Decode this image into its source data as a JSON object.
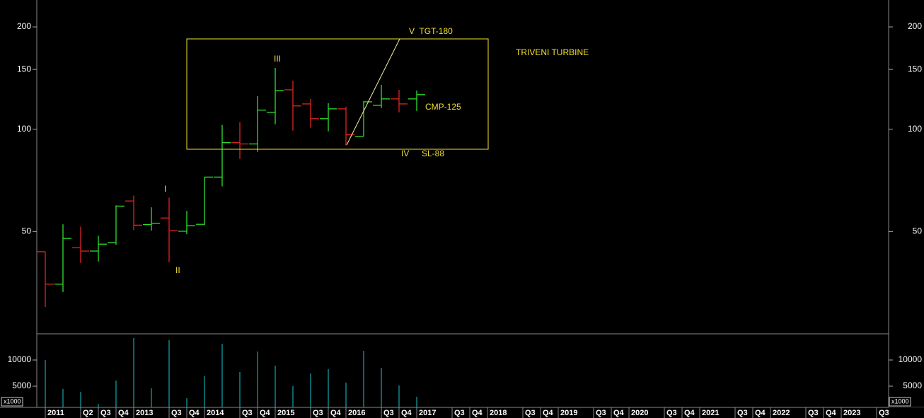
{
  "chart_data": {
    "type": "ohlc",
    "title": "TRIVENI TURBINE",
    "annotations": [
      "V  TGT-180",
      "III",
      "CMP-125",
      "IV",
      "SL-88",
      "I",
      "II"
    ],
    "categories": [
      "2011",
      null,
      "Q2",
      "Q3",
      "Q4",
      "2013",
      null,
      "Q3",
      "Q4",
      "2014",
      null,
      "Q3",
      "Q4",
      "2015",
      null,
      "Q3",
      "Q4",
      "2016",
      null,
      "Q3",
      "Q4",
      "2017",
      null,
      "Q3",
      "Q4",
      "2018",
      null,
      "Q3",
      "Q4",
      "2019",
      null,
      "Q3",
      "Q4",
      "2020",
      null,
      "Q3",
      "Q4",
      "2021",
      null,
      "Q3",
      "Q4",
      "2022",
      null,
      "Q3",
      "Q4",
      "2023",
      null,
      "Q3"
    ],
    "open": [
      43.6,
      35.0,
      44.8,
      43.8,
      46.4,
      61.5,
      52.4,
      54.8,
      50.1,
      52.5,
      72.3,
      91.3,
      90.5,
      112.1,
      130.6,
      118.7,
      107.4,
      114.8,
      95.3,
      117.6,
      122.8,
      122.8,
      null,
      null,
      null,
      null,
      null,
      null,
      null,
      null,
      null,
      null,
      null,
      null,
      null,
      null,
      null,
      null,
      null,
      null,
      null,
      null,
      null,
      null,
      null,
      null,
      null,
      null
    ],
    "high": [
      43.6,
      52.5,
      51.7,
      48.6,
      59.7,
      63.8,
      58.9,
      62.9,
      57.5,
      72.3,
      102.9,
      104.9,
      125.2,
      151.5,
      139.0,
      122.8,
      119.3,
      116.5,
      121.0,
      135.1,
      130.6,
      130.0,
      null,
      null,
      null,
      null,
      null,
      null,
      null,
      null,
      null,
      null,
      null,
      null,
      null,
      null,
      null,
      null,
      null,
      null,
      null,
      null,
      null,
      null,
      null,
      null,
      null,
      null
    ],
    "low": [
      30.0,
      33.2,
      40.4,
      40.8,
      45.7,
      50.5,
      50.3,
      40.6,
      49.1,
      52.2,
      67.9,
      81.8,
      85.8,
      103.4,
      99.0,
      101.0,
      98.6,
      89.6,
      95.3,
      115.4,
      112.1,
      113.2,
      null,
      null,
      null,
      null,
      null,
      null,
      null,
      null,
      null,
      null,
      null,
      null,
      null,
      null,
      null,
      null,
      null,
      null,
      null,
      null,
      null,
      null,
      null,
      null,
      null,
      null
    ],
    "close": [
      35.0,
      47.7,
      43.8,
      45.9,
      59.4,
      52.2,
      52.9,
      50.3,
      52.0,
      72.3,
      91.3,
      90.5,
      113.8,
      130.0,
      117.1,
      107.4,
      114.8,
      96.3,
      120.4,
      122.8,
      118.7,
      126.4,
      null,
      null,
      null,
      null,
      null,
      null,
      null,
      null,
      null,
      null,
      null,
      null,
      null,
      null,
      null,
      null,
      null,
      null,
      null,
      null,
      null,
      null,
      null,
      null,
      null,
      null
    ],
    "up_color": "#2ee02e",
    "down_color": "#e02424",
    "ylim": [
      25,
      240
    ],
    "yticks": [
      50,
      100,
      150,
      200
    ],
    "log_scale": true,
    "volume": {
      "type": "bar",
      "values": [
        10000,
        4460,
        3920,
        1620,
        6080,
        14190,
        4590,
        13780,
        2700,
        6890,
        13100,
        7700,
        11620,
        8920,
        5000,
        7430,
        8240,
        5670,
        11750,
        8510,
        5130,
        2970,
        null,
        null,
        null,
        null,
        null,
        null,
        null,
        null,
        null,
        null,
        null,
        null,
        null,
        null,
        null,
        null,
        null,
        null,
        null,
        null,
        null,
        null,
        null,
        null,
        null,
        null
      ],
      "color": "#14c8d2",
      "ylim": [
        0,
        15000
      ],
      "yticks": [
        10000,
        5000
      ],
      "multiplier_label": "x1000"
    }
  }
}
